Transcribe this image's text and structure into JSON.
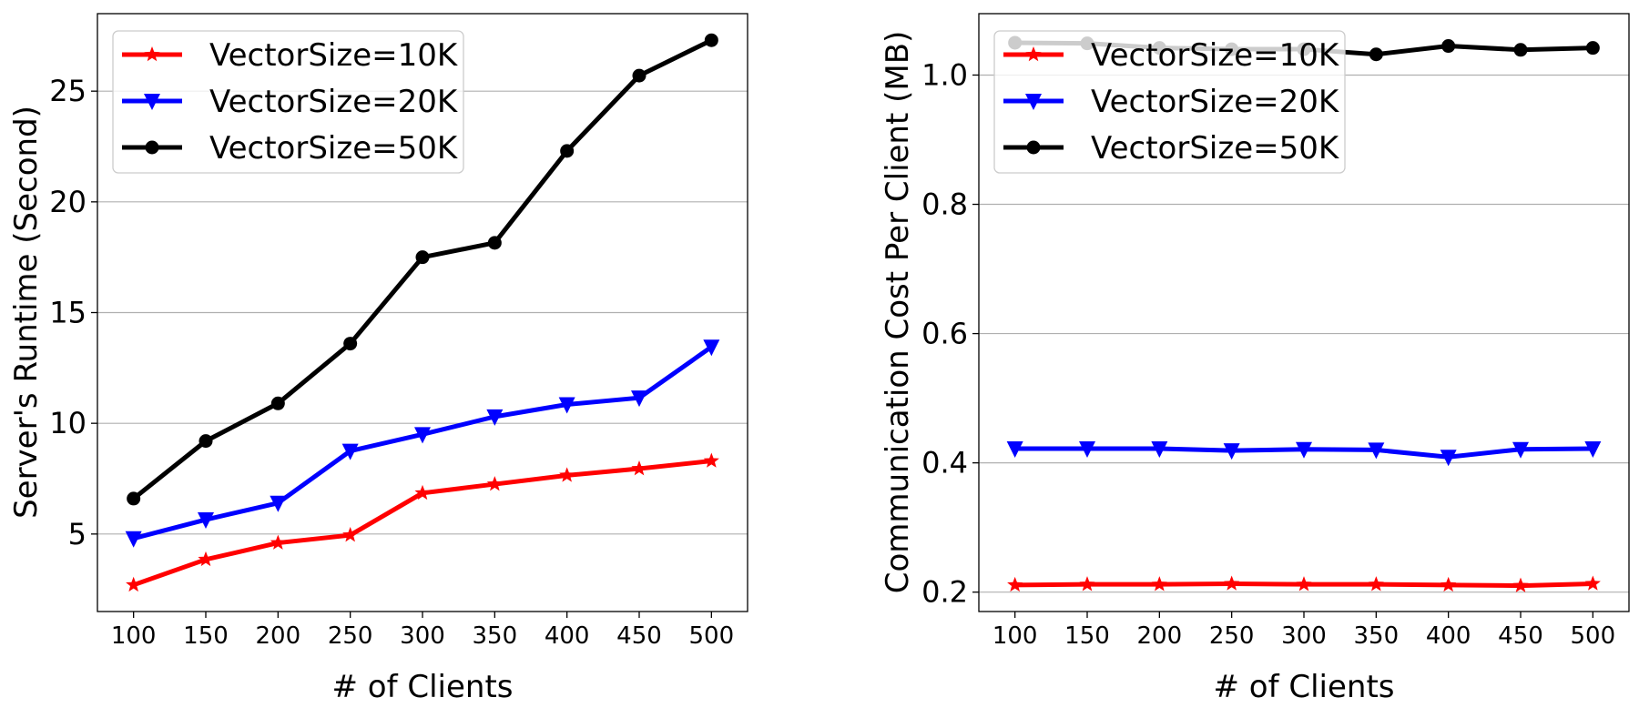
{
  "chart_data": [
    {
      "type": "line",
      "title": "",
      "xlabel": "# of Clients",
      "ylabel": "Server's Runtime (Second)",
      "x": [
        100,
        150,
        200,
        250,
        300,
        350,
        400,
        450,
        500
      ],
      "xticks": [
        "100",
        "150",
        "200",
        "250",
        "300",
        "350",
        "400",
        "450",
        "500"
      ],
      "xlim": [
        75,
        525
      ],
      "ylim": [
        1.5,
        28.5
      ],
      "yticks": [
        5,
        10,
        15,
        20,
        25
      ],
      "ytick_labels": [
        "5",
        "10",
        "15",
        "20",
        "25"
      ],
      "grid": "horizontal",
      "legend_position": "upper-left",
      "series": [
        {
          "name": "VectorSize=10K",
          "color": "#ff0000",
          "marker": "star",
          "values": [
            2.7,
            3.85,
            4.6,
            4.95,
            6.85,
            7.25,
            7.65,
            7.95,
            8.3
          ]
        },
        {
          "name": "VectorSize=20K",
          "color": "#0000ff",
          "marker": "triangle-down",
          "values": [
            4.8,
            5.65,
            6.4,
            8.75,
            9.5,
            10.3,
            10.85,
            11.15,
            13.45
          ]
        },
        {
          "name": "VectorSize=50K",
          "color": "#000000",
          "marker": "circle",
          "values": [
            6.6,
            9.2,
            10.9,
            13.6,
            17.5,
            18.15,
            22.3,
            25.7,
            27.3
          ]
        }
      ]
    },
    {
      "type": "line",
      "title": "",
      "xlabel": "# of Clients",
      "ylabel": "Communication Cost Per Client (MB)",
      "x": [
        100,
        150,
        200,
        250,
        300,
        350,
        400,
        450,
        500
      ],
      "xticks": [
        "100",
        "150",
        "200",
        "250",
        "300",
        "350",
        "400",
        "450",
        "500"
      ],
      "xlim": [
        75,
        525
      ],
      "ylim": [
        0.17,
        1.095
      ],
      "yticks": [
        0.2,
        0.4,
        0.6,
        0.8,
        1.0
      ],
      "ytick_labels": [
        "0.2",
        "0.4",
        "0.6",
        "0.8",
        "1.0"
      ],
      "grid": "horizontal",
      "legend_position": "upper-left",
      "series": [
        {
          "name": "VectorSize=10K",
          "color": "#ff0000",
          "marker": "star",
          "values": [
            0.211,
            0.212,
            0.212,
            0.213,
            0.212,
            0.212,
            0.211,
            0.21,
            0.213
          ]
        },
        {
          "name": "VectorSize=20K",
          "color": "#0000ff",
          "marker": "triangle-down",
          "values": [
            0.422,
            0.422,
            0.422,
            0.419,
            0.421,
            0.42,
            0.409,
            0.421,
            0.422
          ]
        },
        {
          "name": "VectorSize=50K",
          "color": "#000000",
          "marker": "circle",
          "values": [
            1.05,
            1.049,
            1.042,
            1.04,
            1.04,
            1.032,
            1.045,
            1.039,
            1.042
          ]
        }
      ]
    }
  ]
}
